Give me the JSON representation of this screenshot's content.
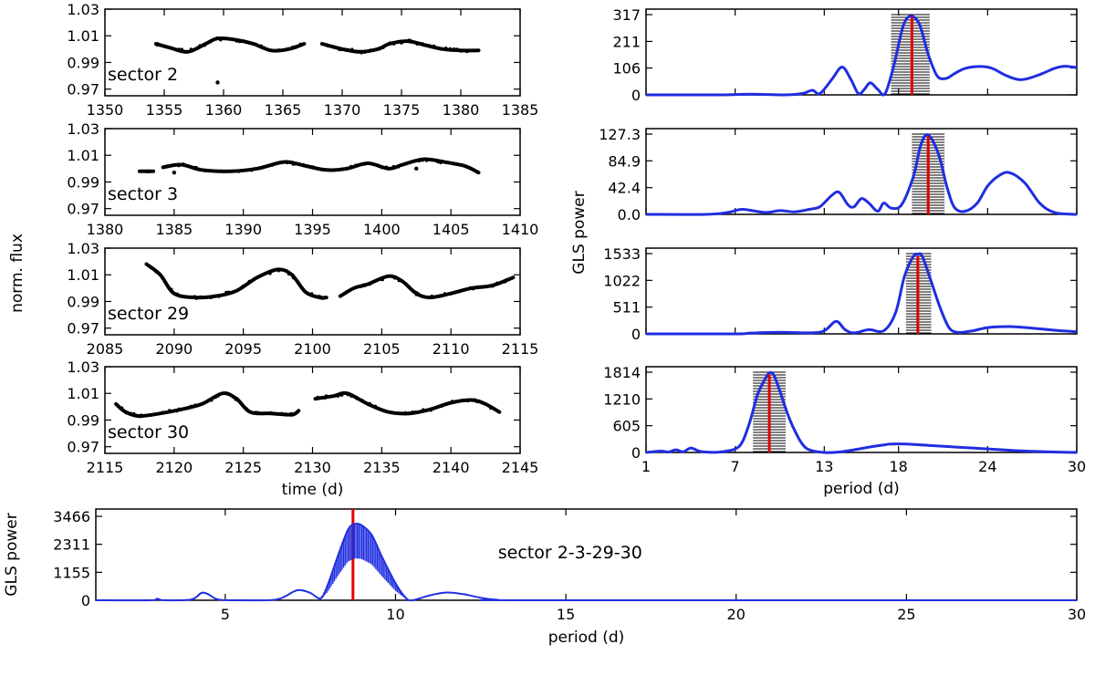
{
  "chart_data": [
    {
      "type": "scatter",
      "panel": "lc-s2",
      "annotation": "sector 2",
      "xlim": [
        1350,
        1385
      ],
      "ylim": [
        0.965,
        1.03
      ],
      "xticks": [
        "1350",
        "1355",
        "1360",
        "1365",
        "1370",
        "1375",
        "1380",
        "1385"
      ],
      "yticks": [
        "0.97",
        "0.99",
        "1.01",
        "1.03"
      ],
      "ylabel": "",
      "xlabel": "",
      "segments": [
        {
          "x": [
            1354.3,
            1355.5,
            1357,
            1358.5,
            1359.5,
            1361,
            1362.5,
            1364,
            1365.5,
            1366.8
          ],
          "y": [
            1.004,
            1.001,
            0.998,
            1.004,
            1.008,
            1.007,
            1.004,
            0.999,
            1.0,
            1.004
          ]
        },
        {
          "x": [
            1368.3,
            1370,
            1371.5,
            1373,
            1374,
            1375.5,
            1377,
            1378.5,
            1380,
            1381.5
          ],
          "y": [
            1.004,
            1.0,
            0.998,
            1.0,
            1.004,
            1.006,
            1.003,
            1.0,
            0.999,
            0.999
          ]
        }
      ],
      "outliers": [
        {
          "x": 1359.5,
          "y": 0.975
        }
      ]
    },
    {
      "type": "scatter",
      "panel": "lc-s3",
      "annotation": "sector 3",
      "xlim": [
        1380,
        1410
      ],
      "ylim": [
        0.965,
        1.03
      ],
      "xticks": [
        "1380",
        "1385",
        "1390",
        "1395",
        "1400",
        "1405",
        "1410"
      ],
      "yticks": [
        "0.97",
        "0.99",
        "1.01",
        "1.03"
      ],
      "ylabel": "",
      "xlabel": "",
      "segments": [
        {
          "x": [
            1382.5,
            1383.5
          ],
          "y": [
            0.998,
            0.998
          ]
        },
        {
          "x": [
            1384.2,
            1385.5,
            1387,
            1389,
            1391,
            1393,
            1394.5,
            1396,
            1397.5,
            1399,
            1400.5,
            1401.5,
            1403,
            1404.5,
            1406,
            1407
          ],
          "y": [
            1.001,
            1.003,
            0.999,
            0.998,
            1.0,
            1.005,
            1.002,
            0.999,
            1.0,
            1.004,
            1.0,
            1.003,
            1.007,
            1.005,
            1.002,
            0.997
          ]
        }
      ],
      "outliers": [
        {
          "x": 1385,
          "y": 0.997
        },
        {
          "x": 1402.5,
          "y": 1.0
        }
      ]
    },
    {
      "type": "scatter",
      "panel": "lc-s29",
      "annotation": "sector 29",
      "xlim": [
        2085,
        2115
      ],
      "ylim": [
        0.965,
        1.03
      ],
      "xticks": [
        "2085",
        "2090",
        "2095",
        "2100",
        "2105",
        "2110",
        "2115"
      ],
      "yticks": [
        "0.97",
        "0.99",
        "1.01",
        "1.03"
      ],
      "ylabel": "norm. flux",
      "xlabel": "",
      "segments": [
        {
          "x": [
            2088,
            2089,
            2090,
            2091.5,
            2093,
            2094.5,
            2096,
            2097.5,
            2098.5,
            2099.5,
            2100.5,
            2101
          ],
          "y": [
            1.018,
            1.01,
            0.996,
            0.993,
            0.994,
            0.998,
            1.008,
            1.014,
            1.01,
            0.997,
            0.993,
            0.993
          ]
        },
        {
          "x": [
            2102,
            2103,
            2104,
            2105.5,
            2106.5,
            2107.5,
            2108.5,
            2110,
            2111.5,
            2113,
            2114.5
          ],
          "y": [
            0.994,
            1.0,
            1.003,
            1.009,
            1.005,
            0.996,
            0.993,
            0.996,
            1.0,
            1.002,
            1.008
          ]
        }
      ],
      "outliers": []
    },
    {
      "type": "scatter",
      "panel": "lc-s30",
      "annotation": "sector 30",
      "xlim": [
        2115,
        2145
      ],
      "ylim": [
        0.965,
        1.03
      ],
      "xticks": [
        "2115",
        "2120",
        "2125",
        "2130",
        "2135",
        "2140",
        "2145"
      ],
      "yticks": [
        "0.97",
        "0.99",
        "1.01",
        "1.03"
      ],
      "ylabel": "",
      "xlabel": "time (d)",
      "segments": [
        {
          "x": [
            2115.8,
            2116.5,
            2117.5,
            2119,
            2120.5,
            2122,
            2123.5,
            2124.5,
            2125.5,
            2127,
            2128.5,
            2129
          ],
          "y": [
            1.002,
            0.996,
            0.993,
            0.995,
            0.998,
            1.002,
            1.01,
            1.006,
            0.996,
            0.995,
            0.994,
            0.997
          ]
        },
        {
          "x": [
            2130.2,
            2131.5,
            2132.5,
            2134,
            2135.5,
            2137,
            2138.5,
            2140,
            2141.5,
            2142.5,
            2143.5
          ],
          "y": [
            1.006,
            1.008,
            1.01,
            1.002,
            0.996,
            0.995,
            0.998,
            1.003,
            1.005,
            1.002,
            0.996
          ]
        }
      ],
      "outliers": []
    },
    {
      "type": "line",
      "panel": "gls-s2",
      "xlim": [
        1,
        30
      ],
      "ylim": [
        0,
        317
      ],
      "yticks": [
        "0",
        "106",
        "211",
        "317"
      ],
      "ylabel": "",
      "xlabel": "",
      "x": [
        1,
        6,
        8,
        10.3,
        11.5,
        12.2,
        12.7,
        13.5,
        14.2,
        14.8,
        15.3,
        15.7,
        16.1,
        16.6,
        17.1,
        17.7,
        18.3,
        18.8,
        19.4,
        20,
        20.6,
        21.2,
        21.8,
        22.5,
        23.5,
        24.3,
        25.3,
        26.3,
        27.5,
        28.5,
        29.2,
        30
      ],
      "y": [
        0,
        0,
        3,
        0,
        5,
        18,
        5,
        60,
        110,
        60,
        5,
        22,
        48,
        22,
        5,
        120,
        270,
        310,
        280,
        160,
        75,
        65,
        85,
        105,
        112,
        105,
        75,
        60,
        80,
        105,
        113,
        108
      ],
      "peak_period": 18.9,
      "band": [
        17.5,
        20.1
      ]
    },
    {
      "type": "line",
      "panel": "gls-s3",
      "xlim": [
        1,
        30
      ],
      "ylim": [
        0,
        127.3
      ],
      "yticks": [
        "0.0",
        "42.4",
        "84.9",
        "127.3"
      ],
      "ylabel": "GLS power",
      "xlabel": "",
      "x": [
        1,
        5,
        6.5,
        7.5,
        9,
        10,
        11,
        12,
        12.7,
        13.5,
        14,
        14.6,
        15,
        15.5,
        16,
        16.6,
        17,
        17.5,
        18.2,
        19,
        19.5,
        20,
        20.7,
        21.3,
        21.8,
        22.5,
        23.3,
        24,
        24.8,
        25.5,
        26.5,
        27.5,
        28.5,
        30
      ],
      "y": [
        0,
        0,
        3,
        8,
        3,
        6,
        4,
        8,
        12,
        30,
        35,
        15,
        12,
        25,
        18,
        5,
        18,
        10,
        15,
        60,
        110,
        126,
        95,
        40,
        10,
        5,
        18,
        45,
        62,
        66,
        50,
        18,
        3,
        0
      ],
      "peak_period": 20.0,
      "band": [
        18.9,
        21.1
      ]
    },
    {
      "type": "line",
      "panel": "gls-s29",
      "xlim": [
        1,
        30
      ],
      "ylim": [
        0,
        1533
      ],
      "yticks": [
        "0",
        "511",
        "1022",
        "1533"
      ],
      "ylabel": "",
      "xlabel": "",
      "x": [
        1,
        7,
        8,
        10,
        12,
        13,
        13.8,
        14.4,
        15,
        16,
        17,
        17.8,
        18.4,
        19,
        19.3,
        19.6,
        20.2,
        20.8,
        21.4,
        22,
        23,
        24,
        25.5,
        27,
        28.5,
        30
      ],
      "y": [
        0,
        0,
        15,
        30,
        20,
        60,
        240,
        80,
        20,
        80,
        60,
        400,
        1100,
        1480,
        1520,
        1480,
        1000,
        500,
        120,
        30,
        60,
        120,
        140,
        110,
        70,
        40
      ],
      "peak_period": 19.3,
      "band": [
        18.5,
        20.2
      ]
    },
    {
      "type": "line",
      "panel": "gls-s30",
      "xlim": [
        1,
        30
      ],
      "ylim": [
        0,
        1814
      ],
      "yticks": [
        "0",
        "605",
        "1210",
        "1814"
      ],
      "ylabel": "",
      "xlabel": "period (d)",
      "xticks": [
        "1",
        "7",
        "13",
        "18",
        "24",
        "30"
      ],
      "x": [
        1,
        2,
        2.5,
        3,
        3.5,
        4,
        4.5,
        5,
        6,
        7,
        7.5,
        8,
        8.5,
        9,
        9.3,
        9.6,
        10,
        10.5,
        11,
        11.5,
        12,
        13,
        14,
        15,
        16,
        17,
        17.5,
        18.5,
        20,
        22,
        24,
        26,
        28,
        30
      ],
      "y": [
        0,
        30,
        10,
        60,
        15,
        100,
        40,
        10,
        10,
        80,
        250,
        700,
        1300,
        1650,
        1800,
        1750,
        1400,
        900,
        500,
        200,
        60,
        0,
        10,
        60,
        120,
        170,
        190,
        190,
        160,
        120,
        80,
        40,
        15,
        0
      ],
      "peak_period": 9.3,
      "band": [
        8.2,
        10.4
      ]
    },
    {
      "type": "line",
      "panel": "gls-combined",
      "annotation": "sector 2-3-29-30",
      "xlim": [
        1.2,
        30
      ],
      "ylim": [
        0,
        3466
      ],
      "yticks": [
        "0",
        "1155",
        "2311",
        "3466"
      ],
      "xticks": [
        "5",
        "10",
        "15",
        "20",
        "25",
        "30"
      ],
      "ylabel": "GLS power",
      "xlabel": "period (d)",
      "x": [
        1.2,
        2.8,
        3,
        3.2,
        4,
        4.3,
        4.5,
        4.8,
        5.5,
        6.5,
        7,
        7.2,
        7.5,
        7.8,
        8,
        8.3,
        8.6,
        8.8,
        9,
        9.3,
        9.6,
        10,
        10.3,
        10.5,
        11,
        11.5,
        12,
        12.5,
        13,
        14,
        30
      ],
      "y": [
        0,
        0,
        60,
        0,
        30,
        300,
        250,
        30,
        0,
        30,
        350,
        420,
        300,
        80,
        600,
        1800,
        2900,
        3150,
        3100,
        2700,
        1800,
        700,
        100,
        0,
        200,
        320,
        250,
        100,
        20,
        0,
        0
      ],
      "peak_period": 8.75
    }
  ]
}
